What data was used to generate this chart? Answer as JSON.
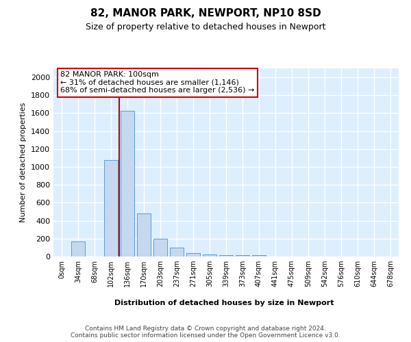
{
  "title1": "82, MANOR PARK, NEWPORT, NP10 8SD",
  "title2": "Size of property relative to detached houses in Newport",
  "xlabel": "Distribution of detached houses by size in Newport",
  "ylabel": "Number of detached properties",
  "categories": [
    "0sqm",
    "34sqm",
    "68sqm",
    "102sqm",
    "136sqm",
    "170sqm",
    "203sqm",
    "237sqm",
    "271sqm",
    "305sqm",
    "339sqm",
    "373sqm",
    "407sqm",
    "441sqm",
    "475sqm",
    "509sqm",
    "542sqm",
    "576sqm",
    "610sqm",
    "644sqm",
    "678sqm"
  ],
  "values": [
    0,
    165,
    0,
    1080,
    1625,
    480,
    200,
    100,
    40,
    25,
    15,
    15,
    15,
    0,
    0,
    0,
    0,
    0,
    0,
    0,
    0
  ],
  "bar_color": "#c5d8f0",
  "bar_edge_color": "#5b9bd5",
  "background_color": "#ddeeff",
  "grid_color": "#ffffff",
  "vline_x_index": 3.5,
  "vline_color": "#bb0000",
  "annotation_text": "82 MANOR PARK: 100sqm\n← 31% of detached houses are smaller (1,146)\n68% of semi-detached houses are larger (2,536) →",
  "annotation_box_color": "#cc0000",
  "footer_text": "Contains HM Land Registry data © Crown copyright and database right 2024.\nContains public sector information licensed under the Open Government Licence v3.0.",
  "ylim": [
    0,
    2100
  ],
  "yticks": [
    0,
    200,
    400,
    600,
    800,
    1000,
    1200,
    1400,
    1600,
    1800,
    2000
  ]
}
